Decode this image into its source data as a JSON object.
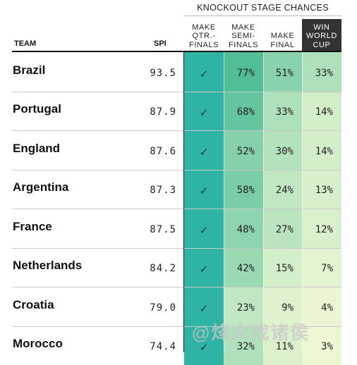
{
  "header": {
    "group_title": "KNOCKOUT STAGE CHANCES",
    "team_label": "TEAM",
    "spi_label": "SPI",
    "columns": [
      "MAKE\nQTR.-\nFINALS",
      "MAKE\nSEMI-\nFINALS",
      "MAKE\nFINAL",
      "WIN\nWORLD\nCUP"
    ]
  },
  "check_glyph": "✓",
  "chart_data": {
    "type": "table",
    "columns": [
      "TEAM",
      "SPI",
      "MAKE QTR.-FINALS",
      "MAKE SEMI-FINALS",
      "MAKE FINAL",
      "WIN WORLD CUP"
    ],
    "rows": [
      {
        "team": "Brazil",
        "spi": "93.5",
        "qf": "✓",
        "sf": "77%",
        "final": "51%",
        "win": "33%",
        "sf_v": 77,
        "final_v": 51,
        "win_v": 33
      },
      {
        "team": "Portugal",
        "spi": "87.9",
        "qf": "✓",
        "sf": "68%",
        "final": "33%",
        "win": "14%",
        "sf_v": 68,
        "final_v": 33,
        "win_v": 14
      },
      {
        "team": "England",
        "spi": "87.6",
        "qf": "✓",
        "sf": "52%",
        "final": "30%",
        "win": "14%",
        "sf_v": 52,
        "final_v": 30,
        "win_v": 14
      },
      {
        "team": "Argentina",
        "spi": "87.3",
        "qf": "✓",
        "sf": "58%",
        "final": "24%",
        "win": "13%",
        "sf_v": 58,
        "final_v": 24,
        "win_v": 13
      },
      {
        "team": "France",
        "spi": "87.5",
        "qf": "✓",
        "sf": "48%",
        "final": "27%",
        "win": "12%",
        "sf_v": 48,
        "final_v": 27,
        "win_v": 12
      },
      {
        "team": "Netherlands",
        "spi": "84.2",
        "qf": "✓",
        "sf": "42%",
        "final": "15%",
        "win": "7%",
        "sf_v": 42,
        "final_v": 15,
        "win_v": 7
      },
      {
        "team": "Croatia",
        "spi": "79.0",
        "qf": "✓",
        "sf": "23%",
        "final": "9%",
        "win": "4%",
        "sf_v": 23,
        "final_v": 9,
        "win_v": 4
      },
      {
        "team": "Morocco",
        "spi": "74.4",
        "qf": "✓",
        "sf": "32%",
        "final": "11%",
        "win": "3%",
        "sf_v": 32,
        "final_v": 11,
        "win_v": 3
      }
    ],
    "colors": {
      "qualified": "#2fb3a4",
      "high": "#4cbc94",
      "low": "#f2f9d6"
    }
  },
  "watermark": "@烽火戏诸侯"
}
